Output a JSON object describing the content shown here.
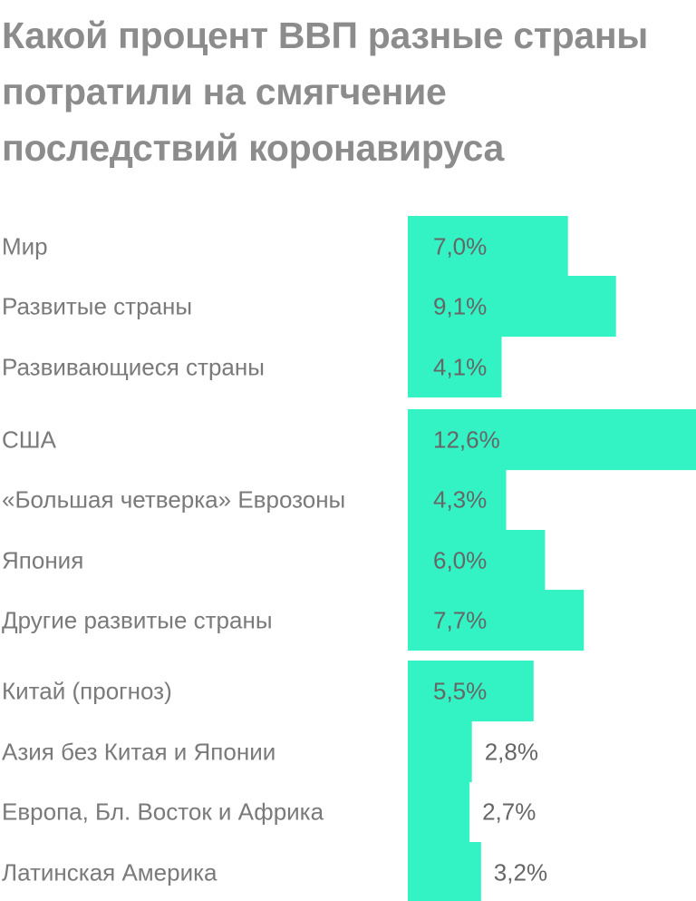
{
  "chart_data": {
    "type": "bar",
    "orientation": "horizontal",
    "title": "Какой процент ВВП разные страны потратили на смягчение последствий коронавируса",
    "categories": [
      "Мир",
      "Развитые страны",
      "Развивающиеся страны",
      "США",
      "«Большая четверка» Еврозоны",
      "Япония",
      "Другие развитые страны",
      "Китай (прогноз)",
      "Азия без Китая и Японии",
      "Европа, Бл. Восток и Африка",
      "Латинская Америка"
    ],
    "values": [
      7.0,
      9.1,
      4.1,
      12.6,
      4.3,
      6.0,
      7.7,
      5.5,
      2.8,
      2.7,
      3.2
    ],
    "value_labels": [
      "7,0%",
      "9,1%",
      "4,1%",
      "12,6%",
      "4,3%",
      "6,0%",
      "7,7%",
      "5,5%",
      "2,8%",
      "2,7%",
      "3,2%"
    ],
    "groups": [
      [
        0,
        1,
        2
      ],
      [
        3,
        4,
        5,
        6
      ],
      [
        7,
        8,
        9,
        10
      ]
    ],
    "xlim": [
      0,
      12.6
    ],
    "bar_color": "#33f2c4",
    "grid": false,
    "legend": "none"
  }
}
